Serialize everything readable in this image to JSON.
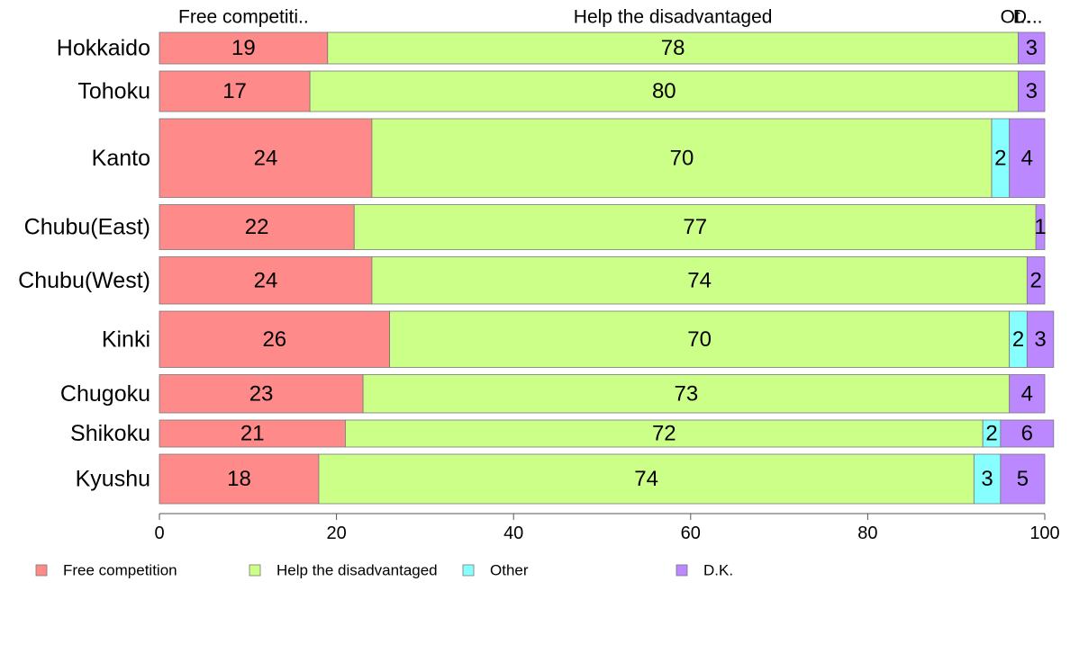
{
  "chart_data": {
    "type": "bar",
    "orientation": "horizontal",
    "stacked": true,
    "categories": [
      "Hokkaido",
      "Tohoku",
      "Kanto",
      "Chubu(East)",
      "Chubu(West)",
      "Kinki",
      "Chugoku",
      "Shikoku",
      "Kyushu"
    ],
    "row_weights": [
      0.7,
      0.9,
      1.75,
      1.0,
      1.05,
      1.25,
      0.85,
      0.6,
      1.1
    ],
    "series": [
      {
        "name": "Free competition",
        "color": "#ff8a8a",
        "values": [
          19,
          17,
          24,
          22,
          24,
          26,
          23,
          21,
          18
        ],
        "labels": [
          "19",
          "17",
          "24",
          "22",
          "24",
          "26",
          "23",
          "21",
          "18"
        ]
      },
      {
        "name": "Help the disadvantaged",
        "color": "#ccff88",
        "values": [
          78,
          80,
          70,
          77,
          74,
          70,
          73,
          72,
          74
        ],
        "labels": [
          "78",
          "80",
          "70",
          "77",
          "74",
          "70",
          "73",
          "72",
          "74"
        ]
      },
      {
        "name": "Other",
        "color": "#88ffff",
        "values": [
          0,
          0,
          2,
          0,
          0,
          2,
          0,
          2,
          3
        ],
        "labels": [
          "",
          "",
          "2",
          "",
          "",
          "2",
          "",
          "2",
          "3"
        ]
      },
      {
        "name": "D.K.",
        "color": "#bb88ff",
        "values": [
          3,
          3,
          4,
          1,
          2,
          3,
          4,
          6,
          5
        ],
        "labels": [
          "3",
          "3",
          "4",
          "1",
          "2",
          "3",
          "4",
          "6",
          "5"
        ]
      }
    ],
    "top_labels": [
      "Free competiti..",
      "Help the disadvantaged",
      "Ot..",
      "D..."
    ],
    "xlim": [
      0,
      100
    ],
    "xticks": [
      "0",
      "20",
      "40",
      "60",
      "80",
      "100"
    ],
    "grid": false,
    "legend_position": "bottom"
  }
}
